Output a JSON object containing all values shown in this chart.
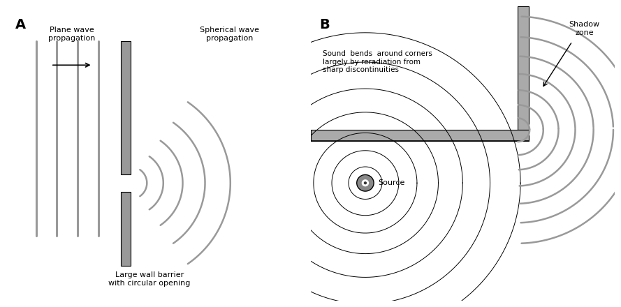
{
  "background_color": "#ffffff",
  "panel_A_label": "A",
  "panel_B_label": "B",
  "text_plane_wave": "Plane wave\npropagation",
  "text_spherical_wave": "Spherical wave\npropagation",
  "text_barrier": "Large wall barrier\nwith circular opening",
  "text_sound_bends": "Sound  bends  around corners\nlargely by reradiation from\nsharp discontinuities",
  "text_shadow_zone": "Shadow\nzone",
  "text_source": "Source",
  "wave_color": "#999999",
  "barrier_color": "#aaaaaa",
  "wall_color": "#aaaaaa",
  "arrow_color": "#000000",
  "source_color": "#555555"
}
